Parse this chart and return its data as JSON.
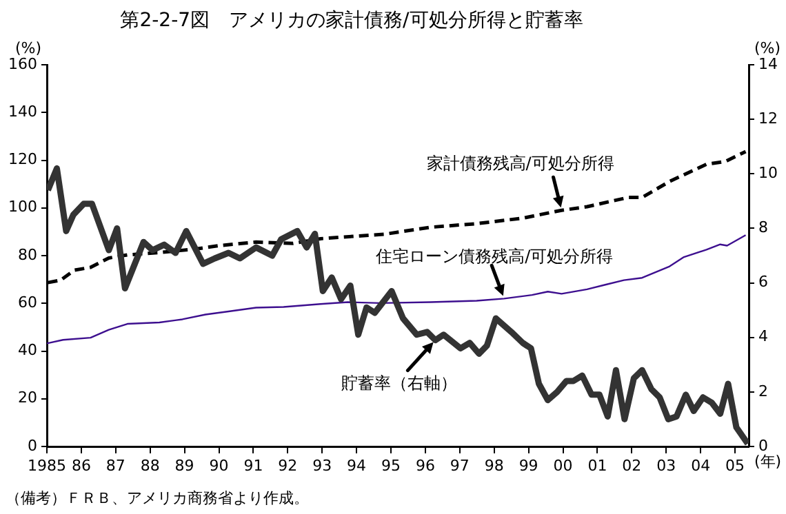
{
  "chart_data": {
    "type": "line",
    "title": "第2-2-7図　アメリカの家計債務/可処分所得と貯蓄率",
    "ylabel": "(%)",
    "y2label": "(%)",
    "xlabel": "(年)",
    "xlim": [
      1985,
      2005.4
    ],
    "xticks": [
      1985,
      {
        "value": 1986,
        "label": "86"
      },
      {
        "value": 1987,
        "label": "87"
      },
      {
        "value": 1988,
        "label": "88"
      },
      {
        "value": 1989,
        "label": "89"
      },
      {
        "value": 1990,
        "label": "90"
      },
      {
        "value": 1991,
        "label": "91"
      },
      {
        "value": 1992,
        "label": "92"
      },
      {
        "value": 1993,
        "label": "93"
      },
      {
        "value": 1994,
        "label": "94"
      },
      {
        "value": 1995,
        "label": "95"
      },
      {
        "value": 1996,
        "label": "96"
      },
      {
        "value": 1997,
        "label": "97"
      },
      {
        "value": 1998,
        "label": "98"
      },
      {
        "value": 1999,
        "label": "99"
      },
      {
        "value": 2000,
        "label": "00"
      },
      {
        "value": 2001,
        "label": "01"
      },
      {
        "value": 2002,
        "label": "02"
      },
      {
        "value": 2003,
        "label": "03"
      },
      {
        "value": 2004,
        "label": "04"
      },
      {
        "value": 2005,
        "label": "05"
      }
    ],
    "ylim": [
      0,
      160
    ],
    "yticks": [
      0,
      20,
      40,
      60,
      80,
      100,
      120,
      140,
      160
    ],
    "y2lim": [
      0,
      14
    ],
    "y2ticks": [
      0,
      2,
      4,
      6,
      8,
      10,
      12,
      14
    ],
    "grid": false,
    "legend": false,
    "marker": "none",
    "series": [
      {
        "color": "#000000",
        "line_style": "dashed",
        "x": [
          1985.03,
          1985.4,
          1985.8,
          1986.27,
          1986.8,
          1987.34,
          1988.27,
          1989.34,
          1990.01,
          1991.08,
          1992.15,
          1992.95,
          1994.82,
          1996.15,
          1997.49,
          1998.83,
          1999.96,
          2000.7,
          2001.9,
          2002.3,
          2003.1,
          2004.17,
          2004.71,
          2005.31
        ],
        "values": [
          68.7,
          69.7,
          73.9,
          75.1,
          79.0,
          80.3,
          81.3,
          82.8,
          84.2,
          85.7,
          85.1,
          87.1,
          89.0,
          91.9,
          93.4,
          95.7,
          99.0,
          100.5,
          104.4,
          104.4,
          111.1,
          118.3,
          119.4,
          123.6
        ]
      },
      {
        "color": "#3d0f8f",
        "line_style": "solid",
        "x": [
          1985.0,
          1985.47,
          1986.27,
          1986.8,
          1987.34,
          1988.27,
          1988.94,
          1989.61,
          1990.28,
          1991.08,
          1991.88,
          1992.95,
          1993.75,
          1994.69,
          1996.15,
          1997.49,
          1998.29,
          1999.1,
          1999.56,
          1999.96,
          2000.7,
          2001.23,
          2001.77,
          2002.3,
          2003.1,
          2003.5,
          2004.17,
          2004.57,
          2004.77,
          2005.31
        ],
        "values": [
          43.2,
          44.7,
          45.6,
          48.9,
          51.4,
          52.0,
          53.3,
          55.3,
          56.6,
          58.2,
          58.5,
          59.7,
          60.5,
          60.1,
          60.5,
          61.1,
          62.0,
          63.5,
          64.9,
          64.0,
          65.9,
          67.8,
          69.7,
          70.7,
          75.5,
          79.3,
          82.5,
          84.7,
          84.2,
          88.6
        ]
      },
      {
        "color": "#333333",
        "line_style": "solid",
        "axis": "y2",
        "x": [
          1985.03,
          1985.29,
          1985.56,
          1985.77,
          1986.07,
          1986.31,
          1986.8,
          1987.04,
          1987.27,
          1987.81,
          1988.07,
          1988.41,
          1988.74,
          1989.05,
          1989.54,
          1989.88,
          1990.28,
          1990.61,
          1991.08,
          1991.55,
          1991.81,
          1992.28,
          1992.55,
          1992.79,
          1993.02,
          1993.28,
          1993.55,
          1993.82,
          1994.05,
          1994.29,
          1994.53,
          1995.02,
          1995.35,
          1995.75,
          1996.05,
          1996.29,
          1996.53,
          1997.02,
          1997.29,
          1997.56,
          1997.79,
          1998.05,
          1998.5,
          1998.83,
          1999.07,
          1999.3,
          1999.56,
          1999.83,
          2000.1,
          2000.3,
          2000.56,
          2000.83,
          2001.06,
          2001.3,
          2001.54,
          2001.79,
          2002.06,
          2002.3,
          2002.57,
          2002.81,
          2003.06,
          2003.3,
          2003.57,
          2003.8,
          2004.07,
          2004.33,
          2004.57,
          2004.8,
          2005.04,
          2005.37
        ],
        "values": [
          9.4,
          10.2,
          7.9,
          8.5,
          8.9,
          8.9,
          7.2,
          8.0,
          5.8,
          7.5,
          7.2,
          7.4,
          7.1,
          7.9,
          6.7,
          6.9,
          7.1,
          6.9,
          7.3,
          7.0,
          7.6,
          7.9,
          7.3,
          7.8,
          5.7,
          6.2,
          5.4,
          5.9,
          4.1,
          5.1,
          4.9,
          5.7,
          4.7,
          4.1,
          4.2,
          3.9,
          4.1,
          3.6,
          3.8,
          3.4,
          3.7,
          4.7,
          4.2,
          3.8,
          3.6,
          2.3,
          1.7,
          2.0,
          2.4,
          2.4,
          2.6,
          1.9,
          1.9,
          1.1,
          2.8,
          1.0,
          2.5,
          2.8,
          2.1,
          1.8,
          1.0,
          1.1,
          1.9,
          1.3,
          1.8,
          1.6,
          1.2,
          2.3,
          0.7,
          0.1
        ]
      }
    ],
    "annotations": [
      {
        "text": "家計債務残高/可処分所得",
        "x": 1999.96,
        "y": 99.0
      },
      {
        "text": "住宅ローン債務残高/可処分所得",
        "x": 1998.29,
        "y": 62.0
      },
      {
        "text": "貯蓄率（右軸）",
        "x": 1996.29,
        "y": 44.6
      },
      "（備考）ＦＲＢ、アメリカ商務省より作成。"
    ]
  }
}
